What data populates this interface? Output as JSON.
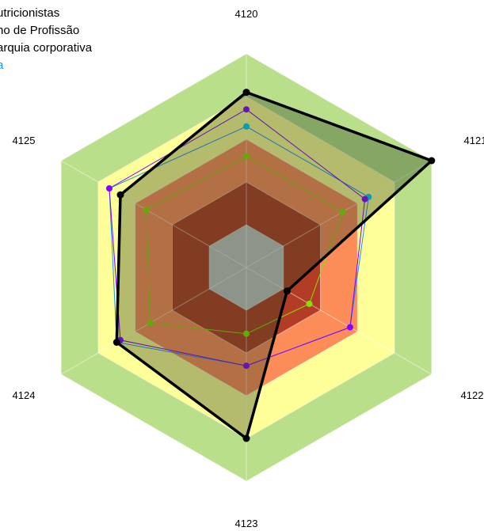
{
  "chart_data": {
    "type": "radar",
    "axes": [
      "4120",
      "4121",
      "4122",
      "4123",
      "4124",
      "4125"
    ],
    "range": [
      0,
      5
    ],
    "bands": [
      {
        "from": 4,
        "to": 5,
        "color": "#b9df8a"
      },
      {
        "from": 3,
        "to": 4,
        "color": "#ffff99"
      },
      {
        "from": 2,
        "to": 3,
        "color": "#fc8d59"
      },
      {
        "from": 1,
        "to": 2,
        "color": "#b23c25"
      },
      {
        "from": 0,
        "to": 1,
        "color": "#c4c4c4"
      }
    ],
    "series": [
      {
        "values": [
          2.6,
          2.6,
          1.7,
          1.55,
          2.6,
          2.7
        ],
        "color": "#88e000",
        "point_color": "#88e000"
      },
      {
        "values": [
          3.3,
          3.3,
          2.8,
          2.3,
          3.5,
          3.7
        ],
        "color": "#1e90ff",
        "point_color": "#00ccff"
      },
      {
        "values": [
          3.7,
          3.2,
          2.8,
          2.3,
          3.4,
          3.7
        ],
        "color": "#7b00ff",
        "point_color": "#8800ff"
      },
      {
        "values": [
          4.1,
          5.0,
          1.1,
          4.0,
          3.5,
          3.4
        ],
        "color": "#000000",
        "point_color": "#000000"
      }
    ]
  },
  "legend": {
    "items": [
      {
        "label": "utricionistas",
        "color": "#000000"
      },
      {
        "label": "no de Profissão",
        "color": "#000000"
      },
      {
        "label": "arquia corporativa",
        "color": "#000000"
      },
      {
        "label": "a",
        "color": "#1e90ff"
      }
    ]
  }
}
